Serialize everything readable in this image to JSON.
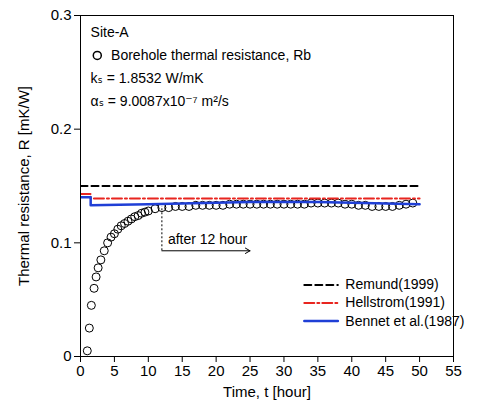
{
  "chart_data": {
    "type": "line",
    "xlabel": "Time, t [hour]",
    "ylabel": "Thermal resistance, R [mK/W]",
    "xlim": [
      0,
      55
    ],
    "xticks": [
      0,
      5,
      10,
      15,
      20,
      25,
      30,
      35,
      40,
      45,
      50,
      55
    ],
    "ylim": [
      0,
      0.3
    ],
    "yticks": [
      0,
      0.1,
      0.2,
      0.3
    ],
    "legend": "bottom-right",
    "annotations": [
      {
        "text": "Site-A"
      },
      {
        "text": "kₛ = 1.8532 W/mK"
      },
      {
        "text": "αₛ = 9.0087x10⁻⁷ m²/s"
      },
      {
        "text": "after 12 hour",
        "x": 12,
        "x_end": 25,
        "y": 0.093
      }
    ],
    "series": [
      {
        "name": "Borehole thermal resistance, Rb",
        "type": "scatter",
        "marker": "circle",
        "color": "#000000",
        "x": [
          1,
          1.3,
          1.6,
          2,
          2.3,
          2.6,
          3,
          3.5,
          4,
          4.5,
          5,
          5.5,
          6,
          6.5,
          7,
          7.5,
          8,
          8.5,
          9,
          9.5,
          10,
          11,
          12,
          13,
          14,
          15,
          16,
          17,
          18,
          19,
          20,
          21,
          22,
          23,
          24,
          25,
          26,
          27,
          28,
          29,
          30,
          31,
          32,
          33,
          34,
          35,
          36,
          37,
          38,
          39,
          40,
          41,
          42,
          43,
          44,
          45,
          46,
          47,
          48,
          49
        ],
        "values": [
          0.005,
          0.025,
          0.045,
          0.06,
          0.07,
          0.078,
          0.085,
          0.093,
          0.1,
          0.105,
          0.108,
          0.112,
          0.115,
          0.117,
          0.119,
          0.121,
          0.123,
          0.124,
          0.126,
          0.127,
          0.128,
          0.13,
          0.131,
          0.131,
          0.132,
          0.132,
          0.132,
          0.133,
          0.133,
          0.133,
          0.133,
          0.133,
          0.134,
          0.134,
          0.134,
          0.134,
          0.134,
          0.134,
          0.134,
          0.134,
          0.134,
          0.134,
          0.134,
          0.134,
          0.135,
          0.135,
          0.135,
          0.135,
          0.135,
          0.134,
          0.134,
          0.133,
          0.133,
          0.132,
          0.132,
          0.132,
          0.132,
          0.133,
          0.134,
          0.135
        ]
      },
      {
        "name": "Remund(1999)",
        "type": "line",
        "line_style": "dashed",
        "color": "#000000",
        "x": [
          0,
          50
        ],
        "values": [
          0.15,
          0.15
        ]
      },
      {
        "name": "Hellstrom(1991)",
        "type": "line",
        "line_style": "dashdot",
        "color": "#e8251f",
        "x": [
          0,
          1.5,
          1.5,
          50
        ],
        "values": [
          0.143,
          0.143,
          0.139,
          0.139
        ]
      },
      {
        "name": "Bennet et al.(1987)",
        "type": "line",
        "line_style": "solid",
        "color": "#1f3fd6",
        "x": [
          0,
          1.5,
          1.5,
          10,
          25,
          35,
          50
        ],
        "values": [
          0.14,
          0.14,
          0.133,
          0.134,
          0.136,
          0.136,
          0.134
        ]
      }
    ]
  }
}
